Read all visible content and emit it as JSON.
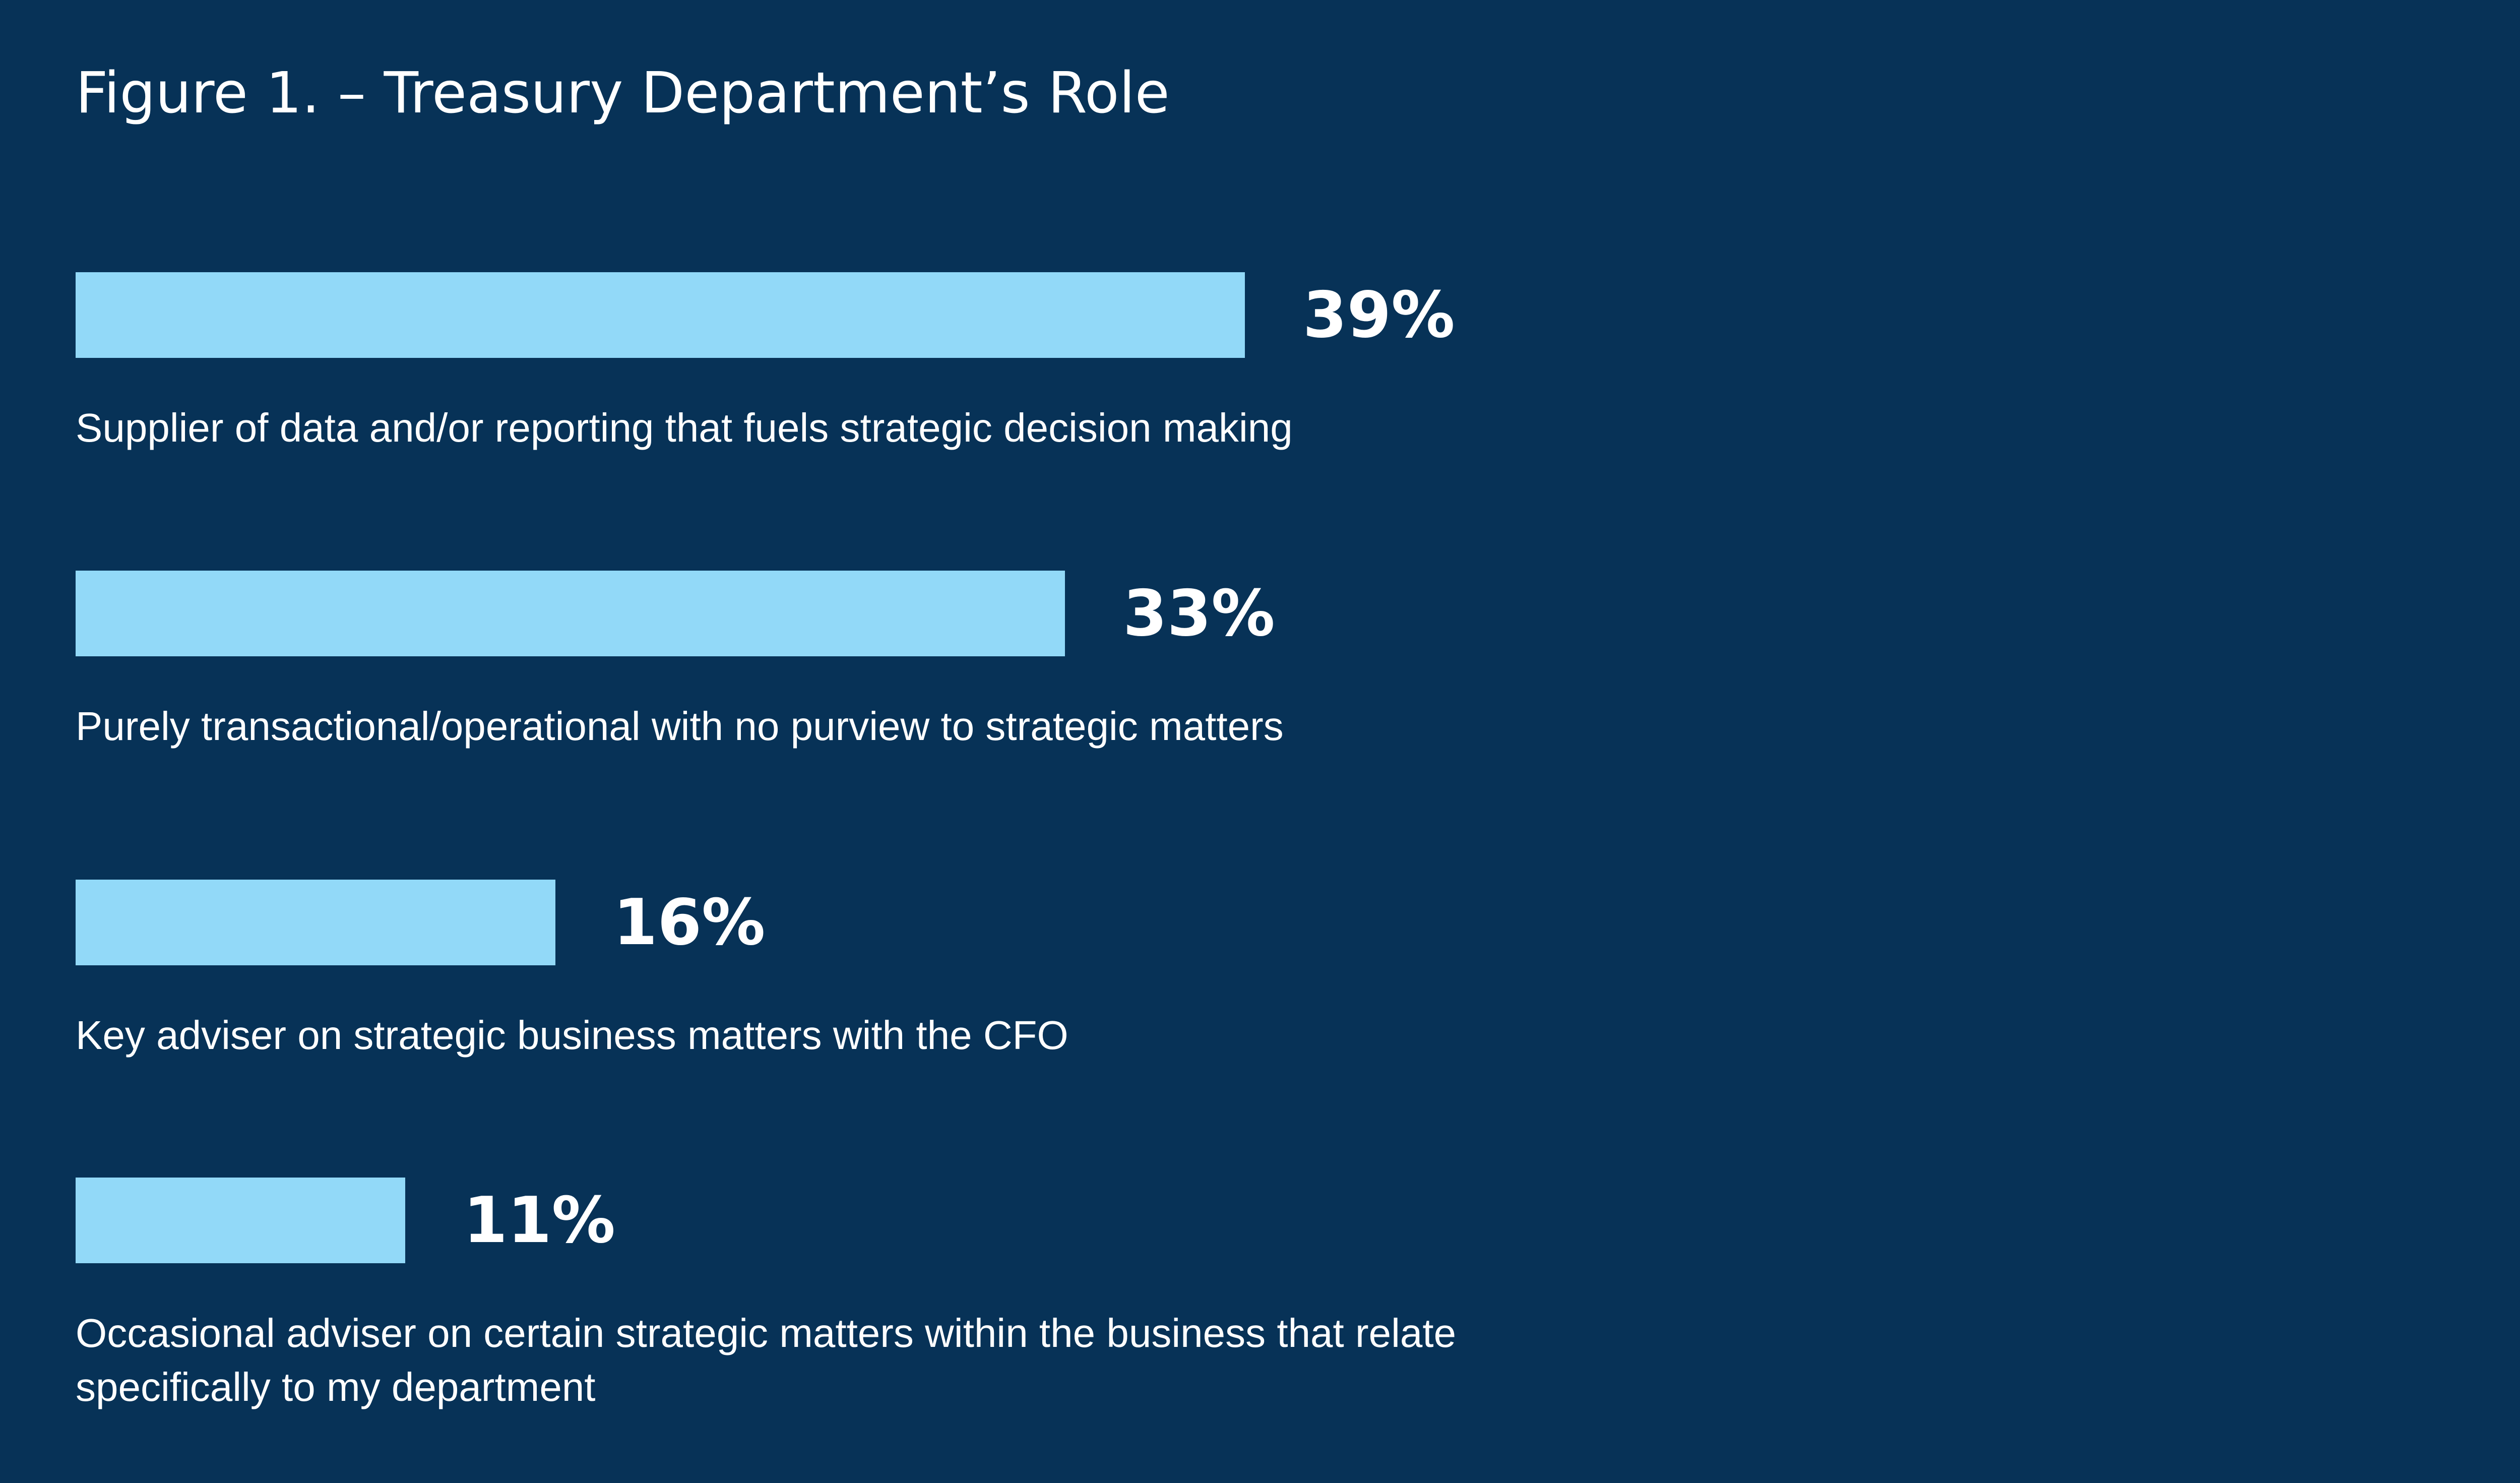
{
  "title": "Figure 1. – Treasury Department’s Role",
  "colors": {
    "background": "#073257",
    "bar": "#92d9f8",
    "text": "#ffffff"
  },
  "chart_data": {
    "type": "bar",
    "orientation": "horizontal",
    "title": "Figure 1. – Treasury Department’s Role",
    "categories": [
      "Supplier of data and/or reporting that fuels strategic decision making",
      "Purely transactional/operational with no purview to strategic matters",
      "Key adviser on strategic business matters with the CFO",
      "Occasional adviser on certain strategic matters within the business that relate specifically to my department"
    ],
    "values": [
      39,
      33,
      16,
      11
    ],
    "value_labels": [
      "39%",
      "33%",
      "16%",
      "11%"
    ],
    "unit": "%",
    "grid": false,
    "legend": "none"
  }
}
